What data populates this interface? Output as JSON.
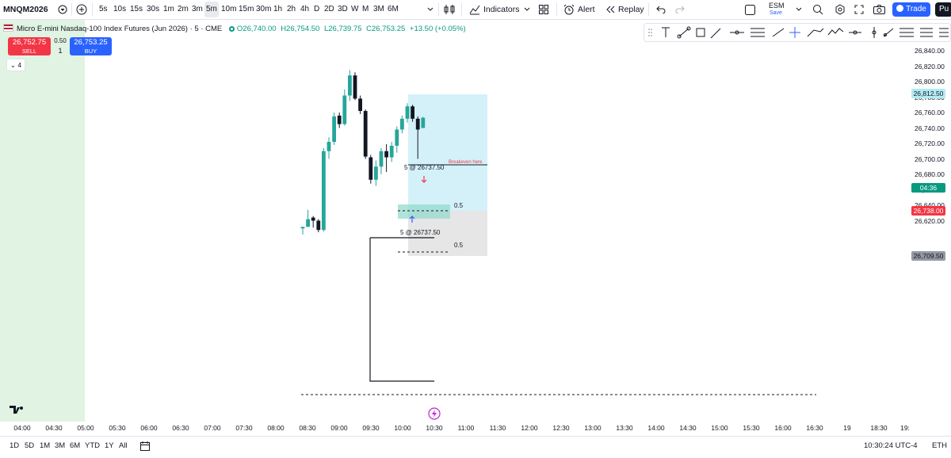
{
  "toolbar": {
    "symbol": "MNQM2026",
    "timeframes": [
      "5s",
      "10s",
      "15s",
      "30s",
      "1m",
      "2m",
      "3m",
      "5m",
      "10m",
      "15m",
      "30m",
      "1h",
      "2h",
      "4h",
      "D",
      "2D",
      "3D",
      "W",
      "M",
      "3M",
      "6M"
    ],
    "active_timeframe": "5m",
    "indicators_label": "Indicators",
    "alert_label": "Alert",
    "replay_label": "Replay",
    "esm_label": "ESM",
    "save_label": "Save",
    "trade_label": "Trade",
    "pu_label": "Pu"
  },
  "legend": {
    "title": "Micro E-mini Nasdaq-100 Index Futures (Jun 2026) · 5 · CME",
    "open": "O26,740.00",
    "high": "H26,754.50",
    "low": "L26,739.75",
    "close": "C26,753.25",
    "change": "+13.50 (+0.05%)"
  },
  "order_panel": {
    "sell_price": "26,752.75",
    "sell_label": "SELL",
    "spread": "0.50",
    "quantity": "1",
    "buy_price": "26,753.25",
    "buy_label": "BUY"
  },
  "indicator_collapse_count": "4",
  "price_axis": {
    "labels": [
      "26,840.00",
      "26,820.00",
      "26,800.00",
      "26,780.00",
      "26,760.00",
      "26,740.00",
      "26,720.00",
      "26,700.00",
      "26,680.00",
      "26,660.00",
      "26,640.00",
      "26,620.00"
    ],
    "tags": [
      {
        "text": "26,812.50",
        "bg": "#b2ebf2",
        "fg": "#131722"
      },
      {
        "text": "04:36",
        "bg": "#089981",
        "fg": "#ffffff"
      },
      {
        "text": "26,738.00",
        "bg": "#f23645",
        "fg": "#ffffff"
      },
      {
        "text": "26,709.50",
        "bg": "#9598a1",
        "fg": "#131722"
      }
    ]
  },
  "time_axis": {
    "labels": [
      "04:00",
      "04:30",
      "05:00",
      "05:30",
      "06:00",
      "06:30",
      "07:00",
      "07:30",
      "08:00",
      "08:30",
      "09:00",
      "09:30",
      "10:00",
      "10:30",
      "11:00",
      "11:30",
      "12:00",
      "12:30",
      "13:00",
      "13:30",
      "14:00",
      "14:30",
      "15:00",
      "15:30",
      "16:00",
      "16:30",
      "19",
      "18:30",
      "19:"
    ]
  },
  "chart_annotations": {
    "breakeven_text": "Breakeven here",
    "entry_label_top": "5 @ 26737.50",
    "entry_label_bottom": "5 @ 26737.50",
    "fib_label_1": "0.5",
    "fib_label_2": "0.5"
  },
  "chart_data": {
    "type": "candlestick",
    "ylim": [
      26610,
      26850
    ],
    "candles": [
      {
        "t": "08:35",
        "o": 26610,
        "h": 26612,
        "l": 26602,
        "c": 26612
      },
      {
        "t": "08:40",
        "o": 26612,
        "h": 26634,
        "l": 26612,
        "c": 26622
      },
      {
        "t": "08:45",
        "o": 26624,
        "h": 26626,
        "l": 26611,
        "c": 26620
      },
      {
        "t": "08:50",
        "o": 26620,
        "h": 26622,
        "l": 26605,
        "c": 26608
      },
      {
        "t": "08:55",
        "o": 26608,
        "h": 26714,
        "l": 26606,
        "c": 26710
      },
      {
        "t": "09:00",
        "o": 26710,
        "h": 26728,
        "l": 26700,
        "c": 26722
      },
      {
        "t": "09:05",
        "o": 26722,
        "h": 26760,
        "l": 26718,
        "c": 26755
      },
      {
        "t": "09:10",
        "o": 26756,
        "h": 26760,
        "l": 26740,
        "c": 26745
      },
      {
        "t": "09:15",
        "o": 26745,
        "h": 26790,
        "l": 26743,
        "c": 26782
      },
      {
        "t": "09:20",
        "o": 26782,
        "h": 26815,
        "l": 26775,
        "c": 26808
      },
      {
        "t": "09:25",
        "o": 26808,
        "h": 26812,
        "l": 26776,
        "c": 26778
      },
      {
        "t": "09:30",
        "o": 26778,
        "h": 26782,
        "l": 26758,
        "c": 26762
      },
      {
        "t": "09:35",
        "o": 26762,
        "h": 26764,
        "l": 26700,
        "c": 26703
      },
      {
        "t": "09:40",
        "o": 26702,
        "h": 26705,
        "l": 26668,
        "c": 26673
      },
      {
        "t": "09:45",
        "o": 26673,
        "h": 26698,
        "l": 26665,
        "c": 26690
      },
      {
        "t": "09:50",
        "o": 26690,
        "h": 26714,
        "l": 26680,
        "c": 26710
      },
      {
        "t": "09:55",
        "o": 26710,
        "h": 26719,
        "l": 26683,
        "c": 26702
      },
      {
        "t": "10:00",
        "o": 26702,
        "h": 26722,
        "l": 26696,
        "c": 26717
      },
      {
        "t": "10:05",
        "o": 26717,
        "h": 26742,
        "l": 26708,
        "c": 26738
      },
      {
        "t": "10:10",
        "o": 26738,
        "h": 26756,
        "l": 26733,
        "c": 26752
      },
      {
        "t": "10:15",
        "o": 26752,
        "h": 26772,
        "l": 26747,
        "c": 26768
      },
      {
        "t": "10:20",
        "o": 26768,
        "h": 26770,
        "l": 26748,
        "c": 26752
      },
      {
        "t": "10:25",
        "o": 26752,
        "h": 26755,
        "l": 26700,
        "c": 26738
      },
      {
        "t": "10:30",
        "o": 26740,
        "h": 26754.5,
        "l": 26739.75,
        "c": 26753.25
      }
    ]
  },
  "bottom_bar": {
    "ranges": [
      "1D",
      "5D",
      "1M",
      "3M",
      "6M",
      "YTD",
      "1Y",
      "All"
    ],
    "clock": "10:30:24 UTC-4",
    "session": "ETH"
  },
  "colors": {
    "up": "#26a69a",
    "down": "#131722",
    "session_bg": "#e1f3e2",
    "target_zone": "#d4f1f9",
    "stop_zone": "#e6e6e6",
    "sell": "#f23645",
    "buy": "#2962ff"
  }
}
